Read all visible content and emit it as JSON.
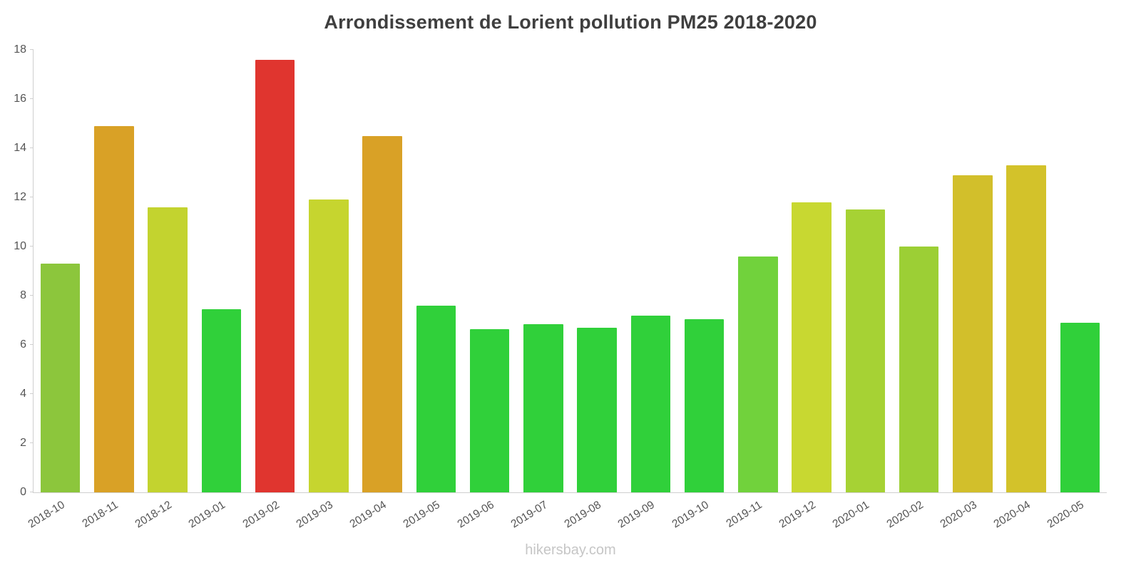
{
  "title": "Arrondissement de Lorient pollution PM25 2018-2020",
  "watermark": "hikersbay.com",
  "chart_data": {
    "type": "bar",
    "title": "Arrondissement de Lorient pollution PM25 2018-2020",
    "xlabel": "",
    "ylabel": "",
    "ylim": [
      0,
      18
    ],
    "yticks": [
      0,
      2,
      4,
      6,
      8,
      10,
      12,
      14,
      16,
      18
    ],
    "grid": false,
    "legend": null,
    "categories": [
      "2018-10",
      "2018-11",
      "2018-12",
      "2019-01",
      "2019-02",
      "2019-03",
      "2019-04",
      "2019-05",
      "2019-06",
      "2019-07",
      "2019-08",
      "2019-09",
      "2019-10",
      "2019-11",
      "2019-12",
      "2020-01",
      "2020-02",
      "2020-03",
      "2020-04",
      "2020-05"
    ],
    "values": [
      9.3,
      14.9,
      11.6,
      7.45,
      17.6,
      11.9,
      14.5,
      7.6,
      6.65,
      6.85,
      6.7,
      7.2,
      7.05,
      9.6,
      11.8,
      11.5,
      10,
      12.9,
      13.3,
      6.9
    ],
    "bar_colors": [
      "#8CC63C",
      "#D9A126",
      "#C3D32F",
      "#30D03A",
      "#E0352F",
      "#C6D52F",
      "#D9A126",
      "#30D03A",
      "#30D03A",
      "#30D03A",
      "#30D03A",
      "#30D03A",
      "#30D03A",
      "#71D23C",
      "#C8D831",
      "#A6D234",
      "#9CCF35",
      "#D2BF2B",
      "#D3C22A",
      "#30D03A"
    ],
    "colors": {
      "axis": "#cfcfcf",
      "tick_text": "#555555",
      "title_text": "#3f3f3f",
      "watermark_text": "#c6c6c6"
    }
  }
}
